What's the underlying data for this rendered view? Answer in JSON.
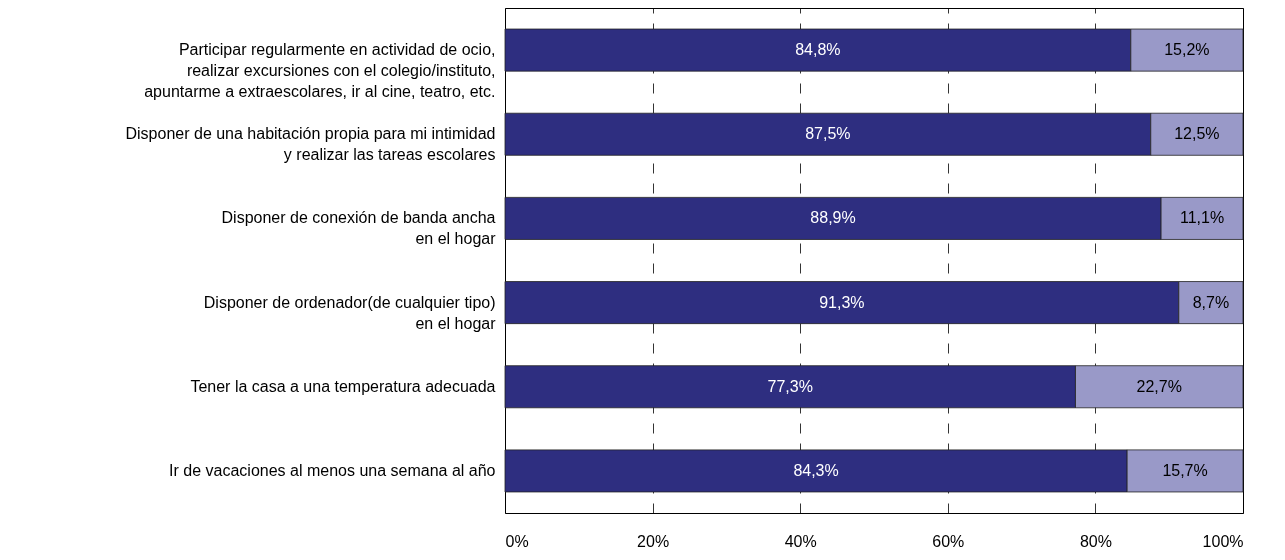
{
  "chart_data": {
    "type": "bar",
    "orientation": "horizontal",
    "stacked": true,
    "categories": [
      "Participar regularmente en actividad de ocio,\nrealizar excursiones con el colegio/instituto,\napuntarme a extraescolares, ir al cine, teatro, etc.",
      "Disponer de una habitación propia para mi intimidad\ny realizar las tareas escolares",
      "Disponer de conexión de banda ancha\nen el hogar",
      "Disponer de ordenador(de cualquier tipo)\nen el hogar",
      "Tener la casa a una temperatura adecuada",
      "Ir de vacaciones al menos una semana al año"
    ],
    "series": [
      {
        "color": "#2e2e80",
        "values": [
          84.8,
          87.5,
          88.9,
          91.3,
          77.3,
          84.3
        ],
        "value_labels": [
          "84,8%",
          "87,5%",
          "88,9%",
          "91,3%",
          "77,3%",
          "84,3%"
        ]
      },
      {
        "color": "#9999c8",
        "values": [
          15.2,
          12.5,
          11.1,
          8.7,
          22.7,
          15.7
        ],
        "value_labels": [
          "15,2%",
          "12,5%",
          "11,1%",
          "8,7%",
          "22,7%",
          "15,7%"
        ]
      }
    ],
    "xlim": [
      0,
      100
    ],
    "xticks": [
      {
        "value": 0,
        "label": "0%"
      },
      {
        "value": 20,
        "label": "20%"
      },
      {
        "value": 40,
        "label": "40%"
      },
      {
        "value": 60,
        "label": "60%"
      },
      {
        "value": 80,
        "label": "80%"
      },
      {
        "value": 100,
        "label": "100%"
      }
    ],
    "grid": "x"
  }
}
